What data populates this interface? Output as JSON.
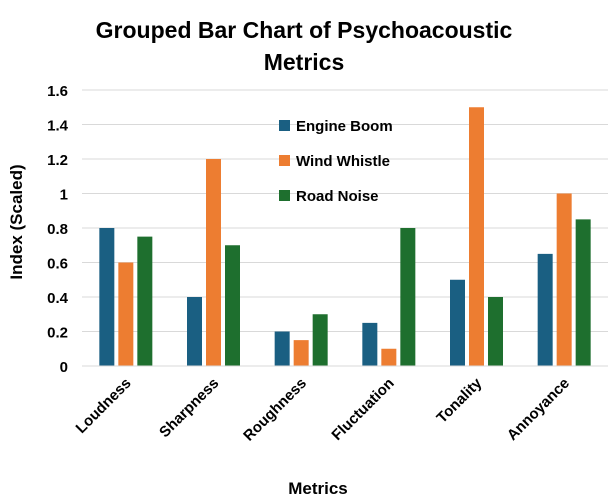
{
  "chart_data": {
    "type": "bar",
    "title_lines": [
      "Grouped Bar Chart of Psychoacoustic",
      "Metrics"
    ],
    "xlabel": "Metrics",
    "ylabel": "Index (Scaled)",
    "categories": [
      "Loudness",
      "Sharpness",
      "Roughness",
      "Fluctuation",
      "Tonality",
      "Annoyance"
    ],
    "series": [
      {
        "name": "Engine Boom",
        "color": "#1a5f82",
        "values": [
          0.8,
          0.4,
          0.2,
          0.25,
          0.5,
          0.65
        ]
      },
      {
        "name": "Wind Whistle",
        "color": "#ed7d31",
        "values": [
          0.6,
          1.2,
          0.15,
          0.1,
          1.5,
          1.0
        ]
      },
      {
        "name": "Road Noise",
        "color": "#1e6f2e",
        "values": [
          0.75,
          0.7,
          0.3,
          0.8,
          0.4,
          0.85
        ]
      }
    ],
    "ylim": [
      0,
      1.6
    ],
    "yticks": [
      0,
      0.2,
      0.4,
      0.6,
      0.8,
      1,
      1.2,
      1.4,
      1.6
    ],
    "ytick_labels": [
      "0",
      "0.2",
      "0.4",
      "0.6",
      "0.8",
      "1",
      "1.2",
      "1.4",
      "1.6"
    ],
    "grid": "horizontal",
    "legend_position": "top-center inside plot"
  }
}
